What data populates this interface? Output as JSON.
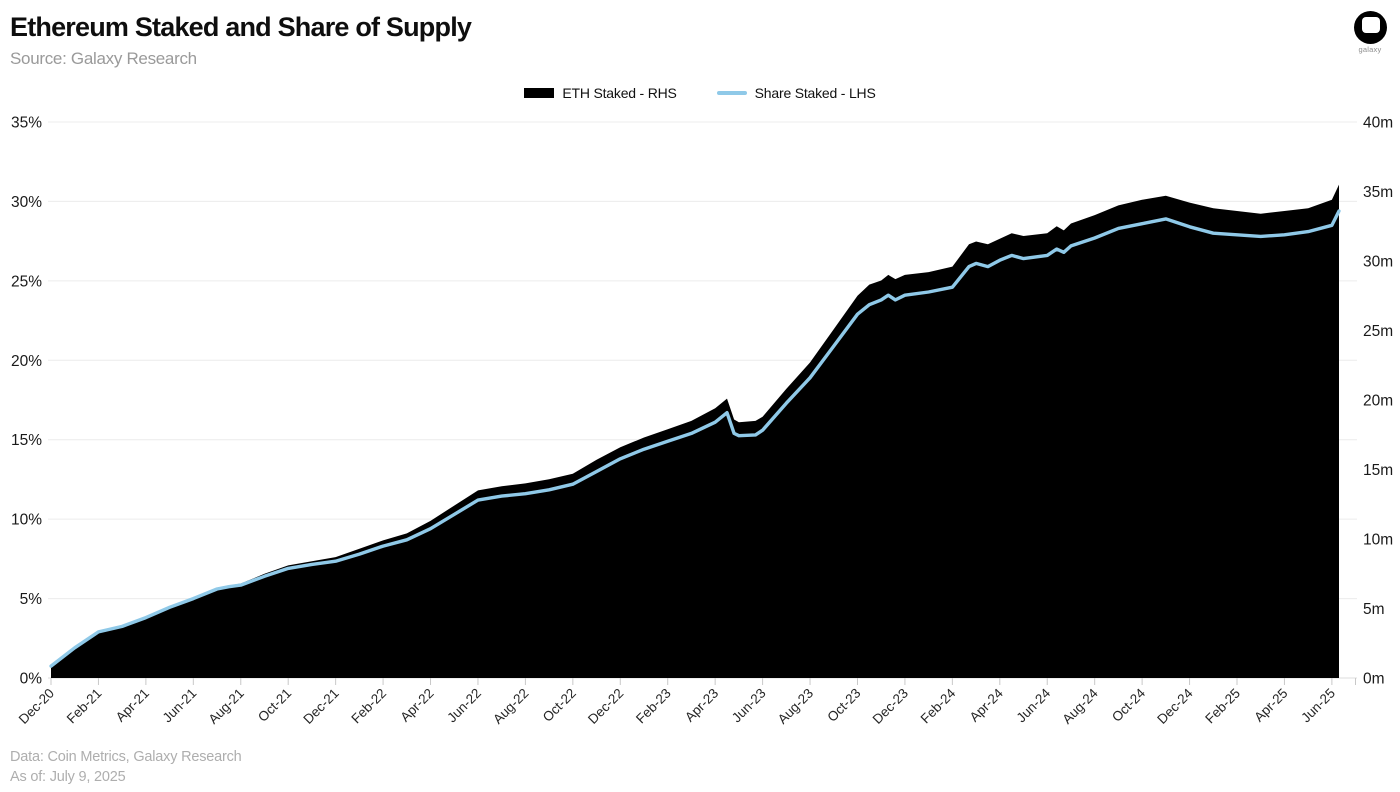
{
  "header": {
    "title": "Ethereum Staked and Share of Supply",
    "source": "Source: Galaxy Research"
  },
  "logo": {
    "label": "galaxy"
  },
  "legend": [
    {
      "label": "ETH Staked - RHS",
      "color": "#000000",
      "swatch": "area"
    },
    {
      "label": "Share Staked - LHS",
      "color": "#8FC9E8",
      "swatch": "line"
    }
  ],
  "footer": {
    "line1": "Data: Coin Metrics, Galaxy Research",
    "line2": "As of: July 9, 2025"
  },
  "chart_data": {
    "type": "area",
    "title": "Ethereum Staked and Share of Supply",
    "grid": "horizontal-only",
    "left_axis": {
      "series": "Share Staked - LHS",
      "min": 0,
      "max": 35,
      "step": 5,
      "suffix": "%"
    },
    "right_axis": {
      "series": "ETH Staked - RHS",
      "min": 0,
      "max": 40,
      "step": 5,
      "suffix": "m"
    },
    "x_tick_labels": [
      "Dec-20",
      "Feb-21",
      "Apr-21",
      "Jun-21",
      "Aug-21",
      "Oct-21",
      "Dec-21",
      "Feb-22",
      "Apr-22",
      "Jun-22",
      "Aug-22",
      "Oct-22",
      "Dec-22",
      "Feb-23",
      "Apr-23",
      "Jun-23",
      "Aug-23",
      "Oct-23",
      "Dec-23",
      "Feb-24",
      "Apr-24",
      "Jun-24",
      "Aug-24",
      "Oct-24",
      "Dec-24",
      "Feb-25",
      "Apr-25",
      "Jun-25"
    ],
    "x_unit": "months since Dec-2020, data through Jul 9 2025",
    "series": [
      {
        "name": "ETH Staked - RHS",
        "type": "area",
        "axis": "right",
        "color": "#000000",
        "unit": "millions of ETH"
      },
      {
        "name": "Share Staked - LHS",
        "type": "line",
        "axis": "left",
        "color": "#8FC9E8",
        "unit": "percent of supply"
      }
    ],
    "points": [
      {
        "m": 0,
        "share": 0.75,
        "staked": 0.85
      },
      {
        "m": 1,
        "share": 1.9,
        "staked": 2.2
      },
      {
        "m": 2,
        "share": 2.9,
        "staked": 3.3
      },
      {
        "m": 3,
        "share": 3.25,
        "staked": 3.7
      },
      {
        "m": 4,
        "share": 3.8,
        "staked": 4.4
      },
      {
        "m": 5,
        "share": 4.45,
        "staked": 5.1
      },
      {
        "m": 6,
        "share": 5.0,
        "staked": 5.8
      },
      {
        "m": 7,
        "share": 5.6,
        "staked": 6.5
      },
      {
        "m": 7.5,
        "share": 5.75,
        "staked": 6.65
      },
      {
        "m": 8,
        "share": 5.85,
        "staked": 6.8
      },
      {
        "m": 9,
        "share": 6.4,
        "staked": 7.5
      },
      {
        "m": 10,
        "share": 6.9,
        "staked": 8.1
      },
      {
        "m": 11,
        "share": 7.15,
        "staked": 8.4
      },
      {
        "m": 12,
        "share": 7.35,
        "staked": 8.7
      },
      {
        "m": 13,
        "share": 7.8,
        "staked": 9.3
      },
      {
        "m": 14,
        "share": 8.3,
        "staked": 9.9
      },
      {
        "m": 15,
        "share": 8.7,
        "staked": 10.4
      },
      {
        "m": 16,
        "share": 9.4,
        "staked": 11.3
      },
      {
        "m": 17,
        "share": 10.3,
        "staked": 12.4
      },
      {
        "m": 18,
        "share": 11.2,
        "staked": 13.5
      },
      {
        "m": 19,
        "share": 11.45,
        "staked": 13.8
      },
      {
        "m": 20,
        "share": 11.6,
        "staked": 14.0
      },
      {
        "m": 21,
        "share": 11.85,
        "staked": 14.3
      },
      {
        "m": 22,
        "share": 12.2,
        "staked": 14.7
      },
      {
        "m": 23,
        "share": 13.0,
        "staked": 15.7
      },
      {
        "m": 24,
        "share": 13.8,
        "staked": 16.6
      },
      {
        "m": 25,
        "share": 14.4,
        "staked": 17.3
      },
      {
        "m": 26,
        "share": 14.9,
        "staked": 17.9
      },
      {
        "m": 27,
        "share": 15.4,
        "staked": 18.5
      },
      {
        "m": 28,
        "share": 16.1,
        "staked": 19.4
      },
      {
        "m": 28.5,
        "share": 16.7,
        "staked": 20.1
      },
      {
        "m": 28.8,
        "share": 15.4,
        "staked": 18.6
      },
      {
        "m": 29,
        "share": 15.25,
        "staked": 18.4
      },
      {
        "m": 29.7,
        "share": 15.3,
        "staked": 18.5
      },
      {
        "m": 30,
        "share": 15.6,
        "staked": 18.8
      },
      {
        "m": 31,
        "share": 17.3,
        "staked": 20.8
      },
      {
        "m": 32,
        "share": 18.9,
        "staked": 22.7
      },
      {
        "m": 33,
        "share": 20.9,
        "staked": 25.1
      },
      {
        "m": 34,
        "share": 22.9,
        "staked": 27.5
      },
      {
        "m": 34.5,
        "share": 23.5,
        "staked": 28.3
      },
      {
        "m": 35,
        "share": 23.8,
        "staked": 28.6
      },
      {
        "m": 35.3,
        "share": 24.1,
        "staked": 29.0
      },
      {
        "m": 35.6,
        "share": 23.8,
        "staked": 28.7
      },
      {
        "m": 36,
        "share": 24.1,
        "staked": 29.0
      },
      {
        "m": 37,
        "share": 24.3,
        "staked": 29.2
      },
      {
        "m": 38,
        "share": 24.6,
        "staked": 29.6
      },
      {
        "m": 38.7,
        "share": 25.9,
        "staked": 31.2
      },
      {
        "m": 39,
        "share": 26.1,
        "staked": 31.4
      },
      {
        "m": 39.5,
        "share": 25.9,
        "staked": 31.2
      },
      {
        "m": 40,
        "share": 26.3,
        "staked": 31.6
      },
      {
        "m": 40.5,
        "share": 26.6,
        "staked": 32.0
      },
      {
        "m": 41,
        "share": 26.4,
        "staked": 31.8
      },
      {
        "m": 42,
        "share": 26.6,
        "staked": 32.0
      },
      {
        "m": 42.4,
        "share": 27.0,
        "staked": 32.5
      },
      {
        "m": 42.7,
        "share": 26.8,
        "staked": 32.2
      },
      {
        "m": 43,
        "share": 27.2,
        "staked": 32.7
      },
      {
        "m": 44,
        "share": 27.7,
        "staked": 33.3
      },
      {
        "m": 45,
        "share": 28.3,
        "staked": 34.0
      },
      {
        "m": 46,
        "share": 28.6,
        "staked": 34.4
      },
      {
        "m": 47,
        "share": 28.9,
        "staked": 34.7
      },
      {
        "m": 48,
        "share": 28.4,
        "staked": 34.2
      },
      {
        "m": 49,
        "share": 28.0,
        "staked": 33.8
      },
      {
        "m": 50,
        "share": 27.9,
        "staked": 33.6
      },
      {
        "m": 51,
        "share": 27.8,
        "staked": 33.4
      },
      {
        "m": 52,
        "share": 27.9,
        "staked": 33.6
      },
      {
        "m": 53,
        "share": 28.1,
        "staked": 33.8
      },
      {
        "m": 54,
        "share": 28.5,
        "staked": 34.4
      },
      {
        "m": 54.3,
        "share": 29.4,
        "staked": 35.5
      }
    ],
    "colors": {
      "gridline": "#ececec",
      "axis_line": "#dcdcdc",
      "tick": "#c8c8c8",
      "axis_text": "#1a1a1a",
      "area": "#000000",
      "line": "#8FC9E8"
    }
  }
}
